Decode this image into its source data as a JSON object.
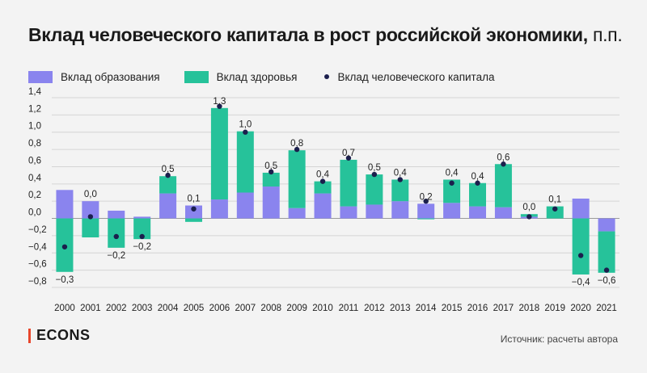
{
  "title": "Вклад человеческого капитала в рост российской экономики,",
  "title_unit": "п.п.",
  "legend": {
    "education": "Вклад образования",
    "health": "Вклад здоровья",
    "total": "Вклад человеческого капитала"
  },
  "colors": {
    "education": "#8a84ee",
    "health": "#26c29a",
    "dot": "#1b1f4d",
    "brand_bar": "#e8462c"
  },
  "brand": "ECONS",
  "source": "Источник: расчеты автора",
  "chart_data": {
    "type": "bar",
    "stacked": true,
    "categories": [
      "2000",
      "2001",
      "2002",
      "2003",
      "2004",
      "2005",
      "2006",
      "2007",
      "2008",
      "2009",
      "2010",
      "2011",
      "2012",
      "2013",
      "2014",
      "2015",
      "2016",
      "2017",
      "2018",
      "2019",
      "2020",
      "2021"
    ],
    "series": [
      {
        "name": "Вклад образования",
        "type": "bar",
        "values": [
          0.33,
          0.2,
          0.09,
          0.02,
          0.29,
          0.15,
          0.22,
          0.3,
          0.37,
          0.12,
          0.29,
          0.14,
          0.16,
          0.2,
          0.17,
          0.18,
          0.14,
          0.13,
          0.02,
          0.0,
          0.23,
          -0.15
        ]
      },
      {
        "name": "Вклад здоровья",
        "type": "bar",
        "values": [
          -0.62,
          -0.22,
          -0.34,
          -0.24,
          0.2,
          -0.04,
          1.06,
          0.71,
          0.16,
          0.67,
          0.14,
          0.54,
          0.35,
          0.25,
          -0.01,
          0.27,
          0.27,
          0.5,
          0.03,
          0.14,
          -0.65,
          -0.48
        ]
      },
      {
        "name": "Вклад человеческого капитала",
        "type": "point",
        "values": [
          -0.33,
          0.02,
          -0.21,
          -0.21,
          0.5,
          0.11,
          1.3,
          1.0,
          0.54,
          0.8,
          0.43,
          0.7,
          0.51,
          0.45,
          0.2,
          0.41,
          0.41,
          0.63,
          0.02,
          0.11,
          -0.43,
          -0.6
        ]
      }
    ],
    "data_labels": [
      "−0,3",
      "0,0",
      "−0,2",
      "−0,2",
      "0,5",
      "0,1",
      "1,3",
      "1,0",
      "0,5",
      "0,8",
      "0,4",
      "0,7",
      "0,5",
      "0,4",
      "0,2",
      "0,4",
      "0,4",
      "0,6",
      "0,0",
      "0,1",
      "−0,4",
      "−0,6"
    ],
    "data_label_below": [
      true,
      false,
      true,
      true,
      false,
      false,
      false,
      false,
      false,
      false,
      false,
      false,
      false,
      false,
      false,
      false,
      false,
      false,
      false,
      false,
      true,
      true
    ],
    "y_ticks": [
      1.4,
      1.2,
      1.0,
      0.8,
      0.6,
      0.4,
      0.2,
      0.0,
      -0.2,
      -0.4,
      -0.6,
      -0.8
    ],
    "y_tick_labels": [
      "1,4",
      "1,2",
      "1,0",
      "0,8",
      "0,6",
      "0,4",
      "0,2",
      "0,0",
      "−0,2",
      "−0,4",
      "−0,6",
      "−0,8"
    ],
    "ylim": [
      -0.8,
      1.4
    ],
    "grid": true,
    "legend_position": "top-left"
  }
}
